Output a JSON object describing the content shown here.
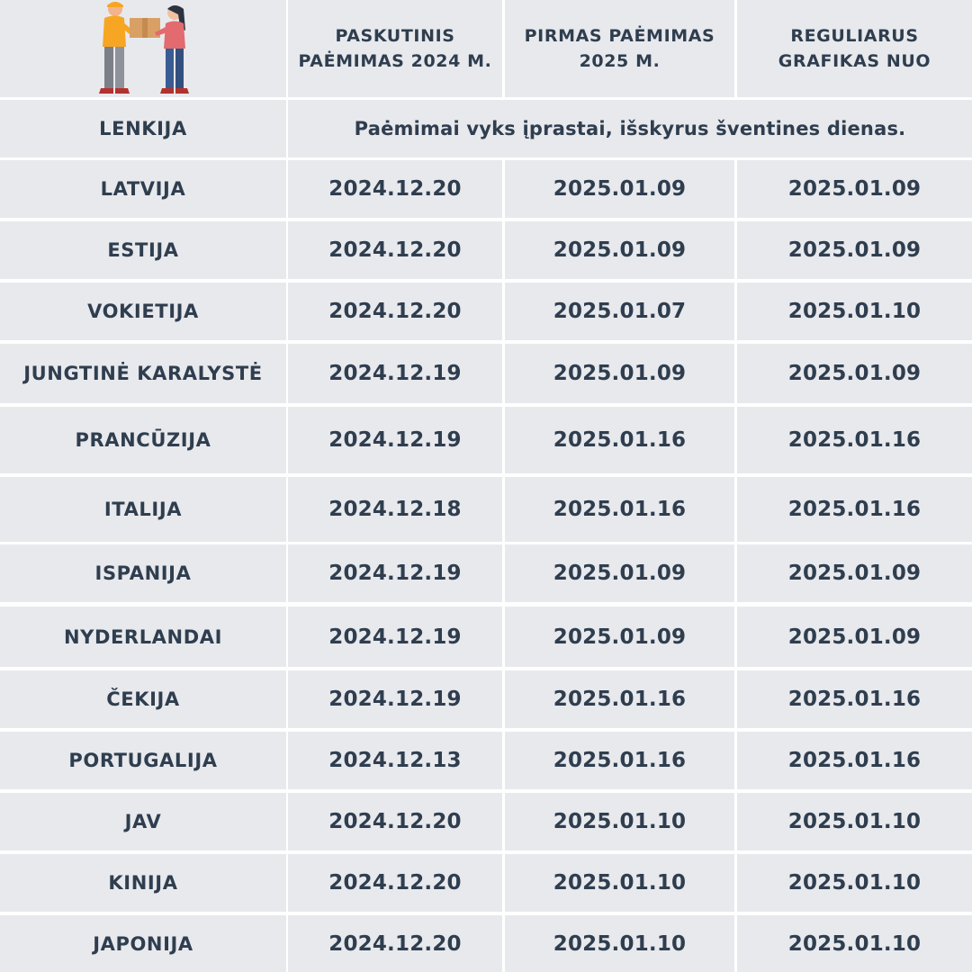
{
  "header": {
    "col1": "PASKUTINIS PAĖMIMAS 2024 M.",
    "col2": "PIRMAS PAĖMIMAS 2025 M.",
    "col3": "REGULIARUS GRAFIKAS NUO"
  },
  "illustration": {
    "icon": "delivery-handover-icon"
  },
  "colors": {
    "cell_bg": "#e8e9ed",
    "text": "#2f3e4f",
    "grid": "#ffffff"
  },
  "lenkija": {
    "country": "LENKIJA",
    "note": "Paėmimai vyks įprastai, išskyrus šventines dienas."
  },
  "rows": [
    {
      "country": "LATVIJA",
      "last_2024": "2024.12.20",
      "first_2025": "2025.01.09",
      "regular_from": "2025.01.09"
    },
    {
      "country": "ESTIJA",
      "last_2024": "2024.12.20",
      "first_2025": "2025.01.09",
      "regular_from": "2025.01.09"
    },
    {
      "country": "VOKIETIJA",
      "last_2024": "2024.12.20",
      "first_2025": "2025.01.07",
      "regular_from": "2025.01.10"
    },
    {
      "country": "JUNGTINĖ KARALYSTĖ",
      "last_2024": "2024.12.19",
      "first_2025": "2025.01.09",
      "regular_from": "2025.01.09"
    },
    {
      "country": "PRANCŪZIJA",
      "last_2024": "2024.12.19",
      "first_2025": "2025.01.16",
      "regular_from": "2025.01.16"
    },
    {
      "country": "ITALIJA",
      "last_2024": "2024.12.18",
      "first_2025": "2025.01.16",
      "regular_from": "2025.01.16"
    },
    {
      "country": "ISPANIJA",
      "last_2024": "2024.12.19",
      "first_2025": "2025.01.09",
      "regular_from": "2025.01.09"
    },
    {
      "country": "NYDERLANDAI",
      "last_2024": "2024.12.19",
      "first_2025": "2025.01.09",
      "regular_from": "2025.01.09"
    },
    {
      "country": "ČEKIJA",
      "last_2024": "2024.12.19",
      "first_2025": "2025.01.16",
      "regular_from": "2025.01.16"
    },
    {
      "country": "PORTUGALIJA",
      "last_2024": "2024.12.13",
      "first_2025": "2025.01.16",
      "regular_from": "2025.01.16"
    },
    {
      "country": "JAV",
      "last_2024": "2024.12.20",
      "first_2025": "2025.01.10",
      "regular_from": "2025.01.10"
    },
    {
      "country": "KINIJA",
      "last_2024": "2024.12.20",
      "first_2025": "2025.01.10",
      "regular_from": "2025.01.10"
    },
    {
      "country": "JAPONIJA",
      "last_2024": "2024.12.20",
      "first_2025": "2025.01.10",
      "regular_from": "2025.01.10"
    }
  ]
}
